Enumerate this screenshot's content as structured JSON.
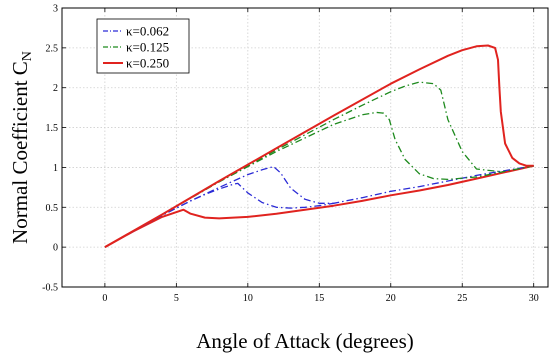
{
  "chart_data": {
    "type": "line",
    "xlabel": "Angle of Attack (degrees)",
    "ylabel": "Normal Coefficient C",
    "ylabel_subscript": "N",
    "xlim": [
      -3,
      31
    ],
    "ylim": [
      -0.5,
      3
    ],
    "xticks": [
      "0",
      "5",
      "10",
      "15",
      "20",
      "25",
      "30"
    ],
    "yticks": [
      "-0.5",
      "0",
      "0.5",
      "1",
      "1.5",
      "2",
      "2.5",
      "3"
    ],
    "grid": true,
    "legend_position": "top-left",
    "series": [
      {
        "name": "κ=0.062",
        "color": "#2b2bd6",
        "dash": "dashdot",
        "x": [
          0,
          2,
          4,
          6,
          8,
          10,
          11,
          11.8,
          12.3,
          13,
          14,
          15,
          16,
          18,
          20,
          22,
          24,
          26,
          28,
          30
        ],
        "y": [
          0,
          0.2,
          0.4,
          0.58,
          0.75,
          0.91,
          0.97,
          1.01,
          0.93,
          0.74,
          0.6,
          0.55,
          0.55,
          0.62,
          0.7,
          0.76,
          0.83,
          0.9,
          0.96,
          1.02
        ]
      },
      {
        "name": "κ=0.125",
        "color": "#1e8a1e",
        "dash": "dashdot",
        "x": [
          0,
          4,
          8,
          12,
          16,
          18,
          19,
          19.5,
          19.9,
          20.3,
          21,
          22,
          23,
          24,
          26,
          28,
          30
        ],
        "y": [
          0,
          0.41,
          0.82,
          1.2,
          1.54,
          1.66,
          1.69,
          1.68,
          1.6,
          1.35,
          1.1,
          0.92,
          0.86,
          0.85,
          0.88,
          0.95,
          1.02
        ]
      },
      {
        "name": "κ=0.250",
        "color": "#e0231f",
        "dash": "solid",
        "x": [
          0,
          4,
          8,
          12,
          16,
          20,
          22,
          24,
          25,
          26,
          26.8,
          27.3,
          27.5,
          27.6,
          27.7,
          28,
          28.5,
          29,
          29.5,
          30
        ],
        "y": [
          0,
          0.41,
          0.83,
          1.24,
          1.65,
          2.05,
          2.23,
          2.4,
          2.47,
          2.52,
          2.53,
          2.5,
          2.35,
          2.0,
          1.7,
          1.3,
          1.12,
          1.05,
          1.02,
          1.02
        ]
      }
    ],
    "extra_curves": [
      {
        "description_of": "κ=0.062 lower branch",
        "color": "#2b2bd6",
        "dash": "dashdot",
        "x": [
          0,
          2,
          4,
          6,
          7,
          8,
          9,
          9.3,
          10,
          11,
          12,
          13,
          14,
          15,
          16
        ],
        "y": [
          0,
          0.2,
          0.4,
          0.58,
          0.66,
          0.73,
          0.79,
          0.8,
          0.68,
          0.56,
          0.5,
          0.49,
          0.5,
          0.52,
          0.55
        ]
      },
      {
        "description_of": "κ=0.125 return branch",
        "color": "#1e8a1e",
        "dash": "dashdot",
        "x": [
          0,
          4,
          8,
          12,
          16,
          18,
          20,
          21,
          22,
          23,
          23.5,
          24,
          25,
          26,
          28,
          30
        ],
        "y": [
          0,
          0.41,
          0.82,
          1.22,
          1.6,
          1.78,
          1.95,
          2.02,
          2.07,
          2.05,
          1.97,
          1.6,
          1.2,
          0.98,
          0.94,
          1.02
        ]
      },
      {
        "description_of": "κ=0.250 lower branch",
        "color": "#e0231f",
        "dash": "solid",
        "x": [
          0,
          2,
          4,
          5.5,
          6,
          7,
          8,
          10,
          12,
          14,
          16,
          18,
          20,
          22,
          24,
          26,
          28,
          30
        ],
        "y": [
          0,
          0.2,
          0.38,
          0.47,
          0.42,
          0.37,
          0.36,
          0.38,
          0.42,
          0.47,
          0.52,
          0.58,
          0.65,
          0.71,
          0.78,
          0.86,
          0.94,
          1.02
        ]
      }
    ]
  }
}
